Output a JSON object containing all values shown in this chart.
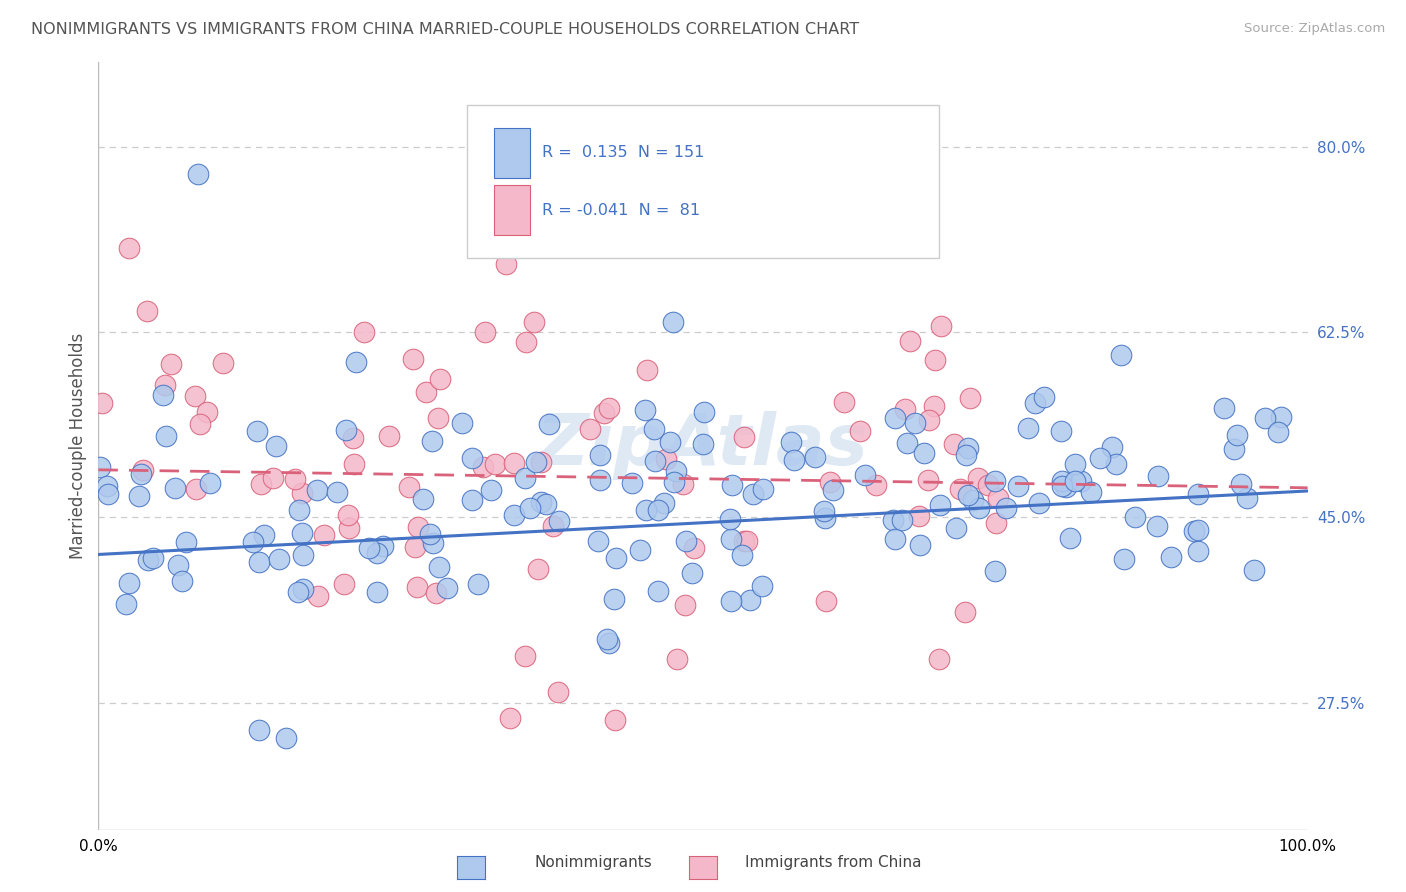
{
  "title": "NONIMMIGRANTS VS IMMIGRANTS FROM CHINA MARRIED-COUPLE HOUSEHOLDS CORRELATION CHART",
  "source": "Source: ZipAtlas.com",
  "ylabel": "Married-couple Households",
  "xlim": [
    0,
    1
  ],
  "ylim": [
    0.155,
    0.88
  ],
  "yticks": [
    0.275,
    0.45,
    0.625,
    0.8
  ],
  "ytick_labels": [
    "27.5%",
    "45.0%",
    "62.5%",
    "80.0%"
  ],
  "xtick_labels": [
    "0.0%",
    "",
    "",
    "",
    "",
    "",
    "",
    "",
    "",
    "",
    "100.0%"
  ],
  "series1_color": "#aec9ed",
  "series2_color": "#f4b8ca",
  "line1_color": "#4472c4",
  "line2_color": "#d9617a",
  "R1": 0.135,
  "N1": 151,
  "R2": -0.041,
  "N2": 81,
  "legend_label1": "Nonimmigrants",
  "legend_label2": "Immigrants from China",
  "grid_color": "#cccccc",
  "title_color": "#555555",
  "axis_label_color": "#4472c4",
  "watermark": "ZipAtlas",
  "blue_line_x0": 0.0,
  "blue_line_y0": 0.415,
  "blue_line_x1": 1.0,
  "blue_line_y1": 0.475,
  "pink_line_x0": 0.0,
  "pink_line_y0": 0.495,
  "pink_line_x1": 1.0,
  "pink_line_y1": 0.478
}
